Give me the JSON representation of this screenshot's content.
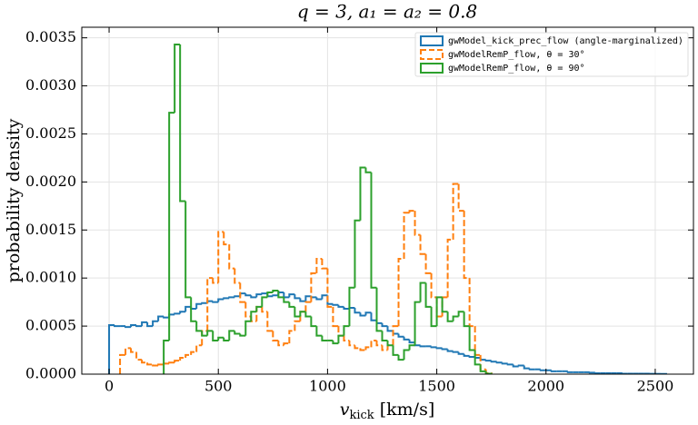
{
  "chart_data": {
    "type": "histogram",
    "title": "q = 3, a₁ = a₂ = 0.8",
    "x_label": [
      "v",
      "kick",
      " [km/s]"
    ],
    "y_label": "probability density",
    "xlim": [
      -125,
      2675
    ],
    "ylim": [
      0,
      0.00361
    ],
    "xticks": [
      0,
      500,
      1000,
      1500,
      2000,
      2500
    ],
    "yticks": [
      {
        "value": 0,
        "label": "0.0000"
      },
      0.0005,
      {
        "value": 0.001,
        "label": "0.0010"
      },
      0.0015,
      {
        "value": 0.002,
        "label": "0.0020"
      },
      0.0025,
      {
        "value": 0.003,
        "label": "0.0030"
      },
      0.0035
    ],
    "grid": true,
    "legend": "upper right",
    "bins": [
      0,
      25,
      50,
      75,
      100,
      125,
      150,
      175,
      200,
      225,
      250,
      275,
      300,
      325,
      350,
      375,
      400,
      425,
      450,
      475,
      500,
      525,
      550,
      575,
      600,
      625,
      650,
      675,
      700,
      725,
      750,
      775,
      800,
      825,
      850,
      875,
      900,
      925,
      950,
      975,
      1000,
      1025,
      1050,
      1075,
      1100,
      1125,
      1150,
      1175,
      1200,
      1225,
      1250,
      1275,
      1300,
      1325,
      1350,
      1375,
      1400,
      1425,
      1450,
      1475,
      1500,
      1525,
      1550,
      1575,
      1600,
      1625,
      1650,
      1675,
      1700,
      1725,
      1750,
      1775,
      1800,
      1825,
      1850,
      1875,
      1900,
      1925,
      1950,
      1975,
      2000,
      2025,
      2050,
      2075,
      2100,
      2125,
      2150,
      2175,
      2200,
      2225,
      2250,
      2275,
      2300,
      2325,
      2350,
      2375,
      2400,
      2425,
      2450,
      2475,
      2500,
      2525,
      2550
    ],
    "series": [
      {
        "name": "gwModel_kick_prec_flow (angle-marginalized)",
        "color": "#1f77b4",
        "linestyle": "solid",
        "values": [
          0.00051,
          0.0005,
          0.0005,
          0.00049,
          0.00051,
          0.0005,
          0.00054,
          0.0005,
          0.00055,
          0.0006,
          0.00059,
          0.00062,
          0.00063,
          0.00065,
          0.0007,
          0.00068,
          0.00073,
          0.00074,
          0.00076,
          0.00075,
          0.00078,
          0.00079,
          0.0008,
          0.00081,
          0.00084,
          0.00082,
          0.0008,
          0.00083,
          0.00084,
          0.00081,
          0.00082,
          0.00085,
          0.0008,
          0.00083,
          0.00079,
          0.00076,
          0.00081,
          0.0008,
          0.00078,
          0.00082,
          0.00073,
          0.00072,
          0.0007,
          0.00068,
          0.00069,
          0.00064,
          0.00061,
          0.00064,
          0.00056,
          0.00053,
          0.0005,
          0.00045,
          0.00042,
          0.00039,
          0.00036,
          0.00033,
          0.0003,
          0.00029,
          0.00029,
          0.00028,
          0.00027,
          0.00026,
          0.00024,
          0.00023,
          0.00021,
          0.00019,
          0.00018,
          0.00017,
          0.00015,
          0.00014,
          0.00013,
          0.00012,
          0.00011,
          0.0001,
          8e-05,
          9e-05,
          6e-05,
          5e-05,
          5e-05,
          4e-05,
          4e-05,
          3e-05,
          3e-05,
          3e-05,
          2e-05,
          2e-05,
          2e-05,
          2e-05,
          1.5e-05,
          1e-05,
          1e-05,
          1e-05,
          1e-05,
          1e-05,
          5e-06,
          5e-06,
          5e-06,
          5e-06,
          5e-06,
          3e-06,
          3e-06,
          2e-06
        ]
      },
      {
        "name": "gwModelRemP_flow, θ = 30°",
        "color": "#ff7f0e",
        "linestyle": "dashed",
        "values": [
          null,
          null,
          0.0002,
          0.00027,
          0.00023,
          0.00015,
          0.00012,
          0.0001,
          9e-05,
          0.0001,
          0.00011,
          0.00012,
          0.00014,
          0.00017,
          0.0002,
          0.00023,
          0.0003,
          0.00045,
          0.001,
          0.00095,
          0.00148,
          0.00135,
          0.0011,
          0.00095,
          0.00075,
          0.0006,
          0.00055,
          0.0007,
          0.00065,
          0.00045,
          0.00035,
          0.0003,
          0.00032,
          0.00045,
          0.00055,
          0.00065,
          0.00075,
          0.00105,
          0.0012,
          0.0011,
          0.0007,
          0.0005,
          0.0004,
          0.00035,
          0.0003,
          0.00027,
          0.00025,
          0.00028,
          0.00035,
          0.0003,
          0.00025,
          0.0003,
          0.0005,
          0.0012,
          0.00168,
          0.0017,
          0.00145,
          0.00125,
          0.00105,
          0.0008,
          0.0006,
          0.0008,
          0.0014,
          0.00198,
          0.0017,
          0.001,
          0.0005,
          0.0002,
          5e-05,
          1e-05,
          null,
          null,
          null,
          null,
          null,
          null,
          null,
          null,
          null,
          null,
          null,
          null,
          null,
          null,
          null,
          null,
          null,
          null,
          null,
          null,
          null,
          null,
          null,
          null,
          null,
          null,
          null,
          null,
          null,
          null,
          null,
          null
        ]
      },
      {
        "name": "gwModelRemP_flow, θ = 90°",
        "color": "#2ca02c",
        "linestyle": "solid",
        "values": [
          null,
          null,
          null,
          null,
          null,
          null,
          null,
          null,
          null,
          null,
          0.00035,
          0.00272,
          0.00343,
          0.0018,
          0.0008,
          0.00055,
          0.00045,
          0.0004,
          0.00045,
          0.00035,
          0.00038,
          0.00035,
          0.00045,
          0.00042,
          0.0004,
          0.00055,
          0.00065,
          0.0007,
          0.0008,
          0.00085,
          0.00087,
          0.0008,
          0.00075,
          0.0007,
          0.0006,
          0.00065,
          0.0006,
          0.0005,
          0.0004,
          0.00035,
          0.00035,
          0.00032,
          0.0004,
          0.0005,
          0.0009,
          0.0016,
          0.00215,
          0.0021,
          0.0009,
          0.00045,
          0.00035,
          0.0003,
          0.0002,
          0.00015,
          0.00025,
          0.0003,
          0.00075,
          0.00095,
          0.0007,
          0.0005,
          0.0008,
          0.00065,
          0.00055,
          0.0006,
          0.00065,
          0.0005,
          0.00025,
          0.0001,
          3e-05,
          5e-06,
          null,
          null,
          null,
          null,
          null,
          null,
          null,
          null,
          null,
          null,
          null,
          null,
          null,
          null,
          null,
          null,
          null,
          null,
          null,
          null,
          null,
          null,
          null,
          null,
          null,
          null,
          null,
          null,
          null,
          null,
          null,
          null
        ]
      }
    ]
  }
}
